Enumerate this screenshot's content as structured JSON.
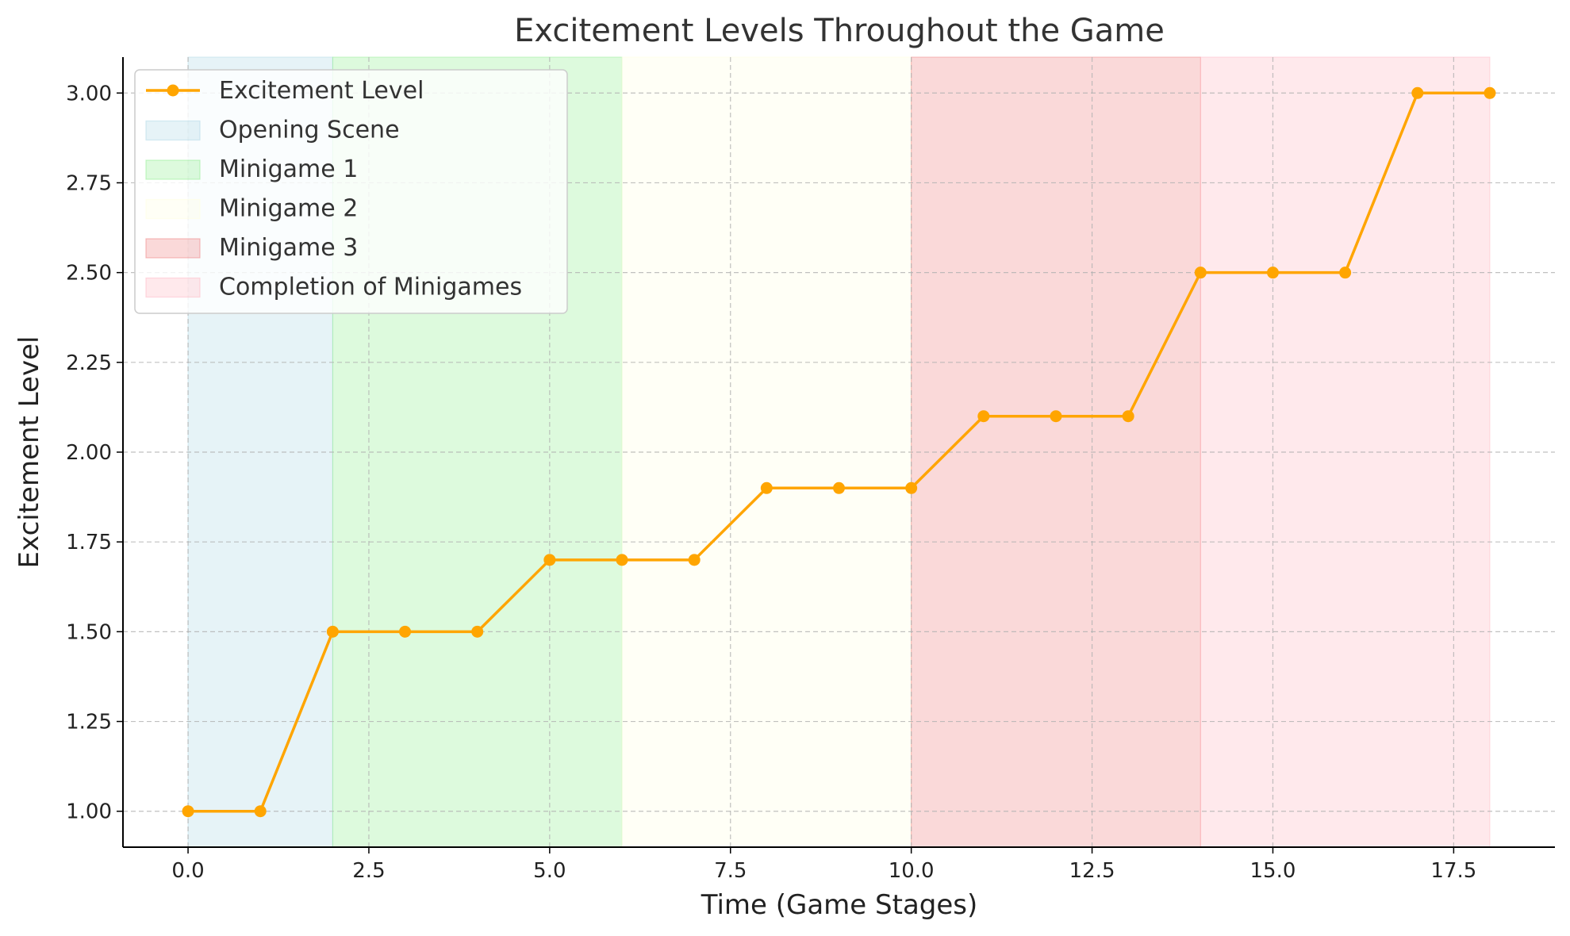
{
  "chart_data": {
    "type": "line",
    "title": "Excitement Levels Throughout the Game",
    "xlabel": "Time (Game Stages)",
    "ylabel": "Excitement Level",
    "xlim": [
      -0.9,
      18.9
    ],
    "ylim": [
      0.9,
      3.1
    ],
    "xticks": [
      0,
      2.5,
      5,
      7.5,
      10,
      12.5,
      15,
      17.5
    ],
    "xtick_labels": [
      "0.0",
      "2.5",
      "5.0",
      "7.5",
      "10.0",
      "12.5",
      "15.0",
      "17.5"
    ],
    "yticks": [
      1.0,
      1.25,
      1.5,
      1.75,
      2.0,
      2.25,
      2.5,
      2.75,
      3.0
    ],
    "ytick_labels": [
      "1.00",
      "1.25",
      "1.50",
      "1.75",
      "2.00",
      "2.25",
      "2.50",
      "2.75",
      "3.00"
    ],
    "grid": true,
    "legend_position": "top-left",
    "series": [
      {
        "name": "Excitement Level",
        "color": "#FFA500",
        "marker": "circle",
        "x": [
          0,
          1,
          2,
          3,
          4,
          5,
          6,
          7,
          8,
          9,
          10,
          11,
          12,
          13,
          14,
          15,
          16,
          17,
          18
        ],
        "y": [
          1.0,
          1.0,
          1.5,
          1.5,
          1.5,
          1.7,
          1.7,
          1.7,
          1.9,
          1.9,
          1.9,
          2.1,
          2.1,
          2.1,
          2.5,
          2.5,
          2.5,
          3.0,
          3.0
        ]
      }
    ],
    "regions": [
      {
        "name": "Opening Scene",
        "start": 0,
        "end": 2,
        "color": "#ADD8E6"
      },
      {
        "name": "Minigame 1",
        "start": 2,
        "end": 6,
        "color": "#90EE90"
      },
      {
        "name": "Minigame 2",
        "start": 6,
        "end": 10,
        "color": "#FFFFE0"
      },
      {
        "name": "Minigame 3",
        "start": 10,
        "end": 14,
        "color": "#F08080"
      },
      {
        "name": "Completion of Minigames",
        "start": 14,
        "end": 18,
        "color": "#FFB6C1"
      }
    ]
  }
}
